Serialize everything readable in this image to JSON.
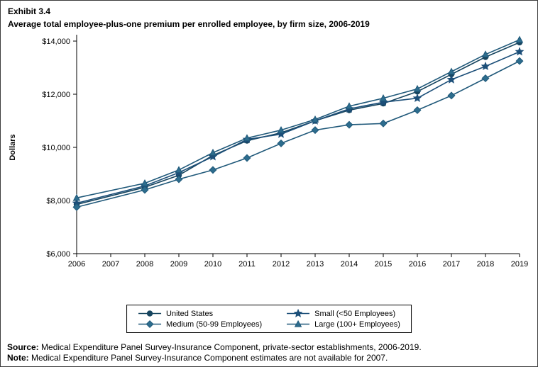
{
  "header": {
    "exhibit_label": "Exhibit 3.4",
    "title": "Average total employee-plus-one premium per enrolled employee, by firm size, 2006-2019"
  },
  "chart_data": {
    "type": "line",
    "title": "Average total employee-plus-one premium per enrolled employee, by firm size, 2006-2019",
    "xlabel": "",
    "ylabel": "Dollars",
    "ylim": [
      6000,
      14000
    ],
    "yticks": [
      6000,
      8000,
      10000,
      12000,
      14000
    ],
    "ytick_labels": [
      "$6,000",
      "$8,000",
      "$10,000",
      "$12,000",
      "$14,000"
    ],
    "categories": [
      "2006",
      "2007",
      "2008",
      "2009",
      "2010",
      "2011",
      "2012",
      "2013",
      "2014",
      "2015",
      "2016",
      "2017",
      "2018",
      "2019"
    ],
    "missing_years": [
      "2007"
    ],
    "grid": false,
    "legend_position": "bottom",
    "series": [
      {
        "key": "united-states",
        "name": "United States",
        "marker": "circle",
        "color": "#17455f",
        "fill": "#17455f",
        "values": [
          7850,
          null,
          8500,
          8950,
          9700,
          10250,
          10550,
          11000,
          11400,
          11650,
          12100,
          12750,
          13400,
          13950
        ]
      },
      {
        "key": "small",
        "name": "Small (<50 Employees)",
        "marker": "star",
        "color": "#1c4f79",
        "fill": "#1c4f79",
        "values": [
          7900,
          null,
          8550,
          9050,
          9650,
          10300,
          10500,
          11000,
          11450,
          11700,
          11850,
          12550,
          13050,
          13600
        ]
      },
      {
        "key": "medium",
        "name": "Medium (50-99 Employees)",
        "marker": "diamond",
        "color": "#20597a",
        "fill": "#2d6d8e",
        "values": [
          7750,
          null,
          8400,
          8800,
          9150,
          9600,
          10150,
          10650,
          10850,
          10900,
          11400,
          11950,
          12600,
          13250
        ]
      },
      {
        "key": "large",
        "name": "Large (100+ Employees)",
        "marker": "triangle",
        "color": "#20597a",
        "fill": "#2d6d8e",
        "values": [
          8100,
          null,
          8650,
          9150,
          9800,
          10350,
          10650,
          11050,
          11550,
          11850,
          12200,
          12850,
          13500,
          14050
        ]
      }
    ]
  },
  "footer": {
    "source_label": "Source:",
    "source_text": "Medical Expenditure Panel Survey-Insurance Component, private-sector establishments, 2006-2019.",
    "note_label": "Note:",
    "note_text": "Medical Expenditure Panel Survey-Insurance Component estimates are not available for 2007."
  }
}
